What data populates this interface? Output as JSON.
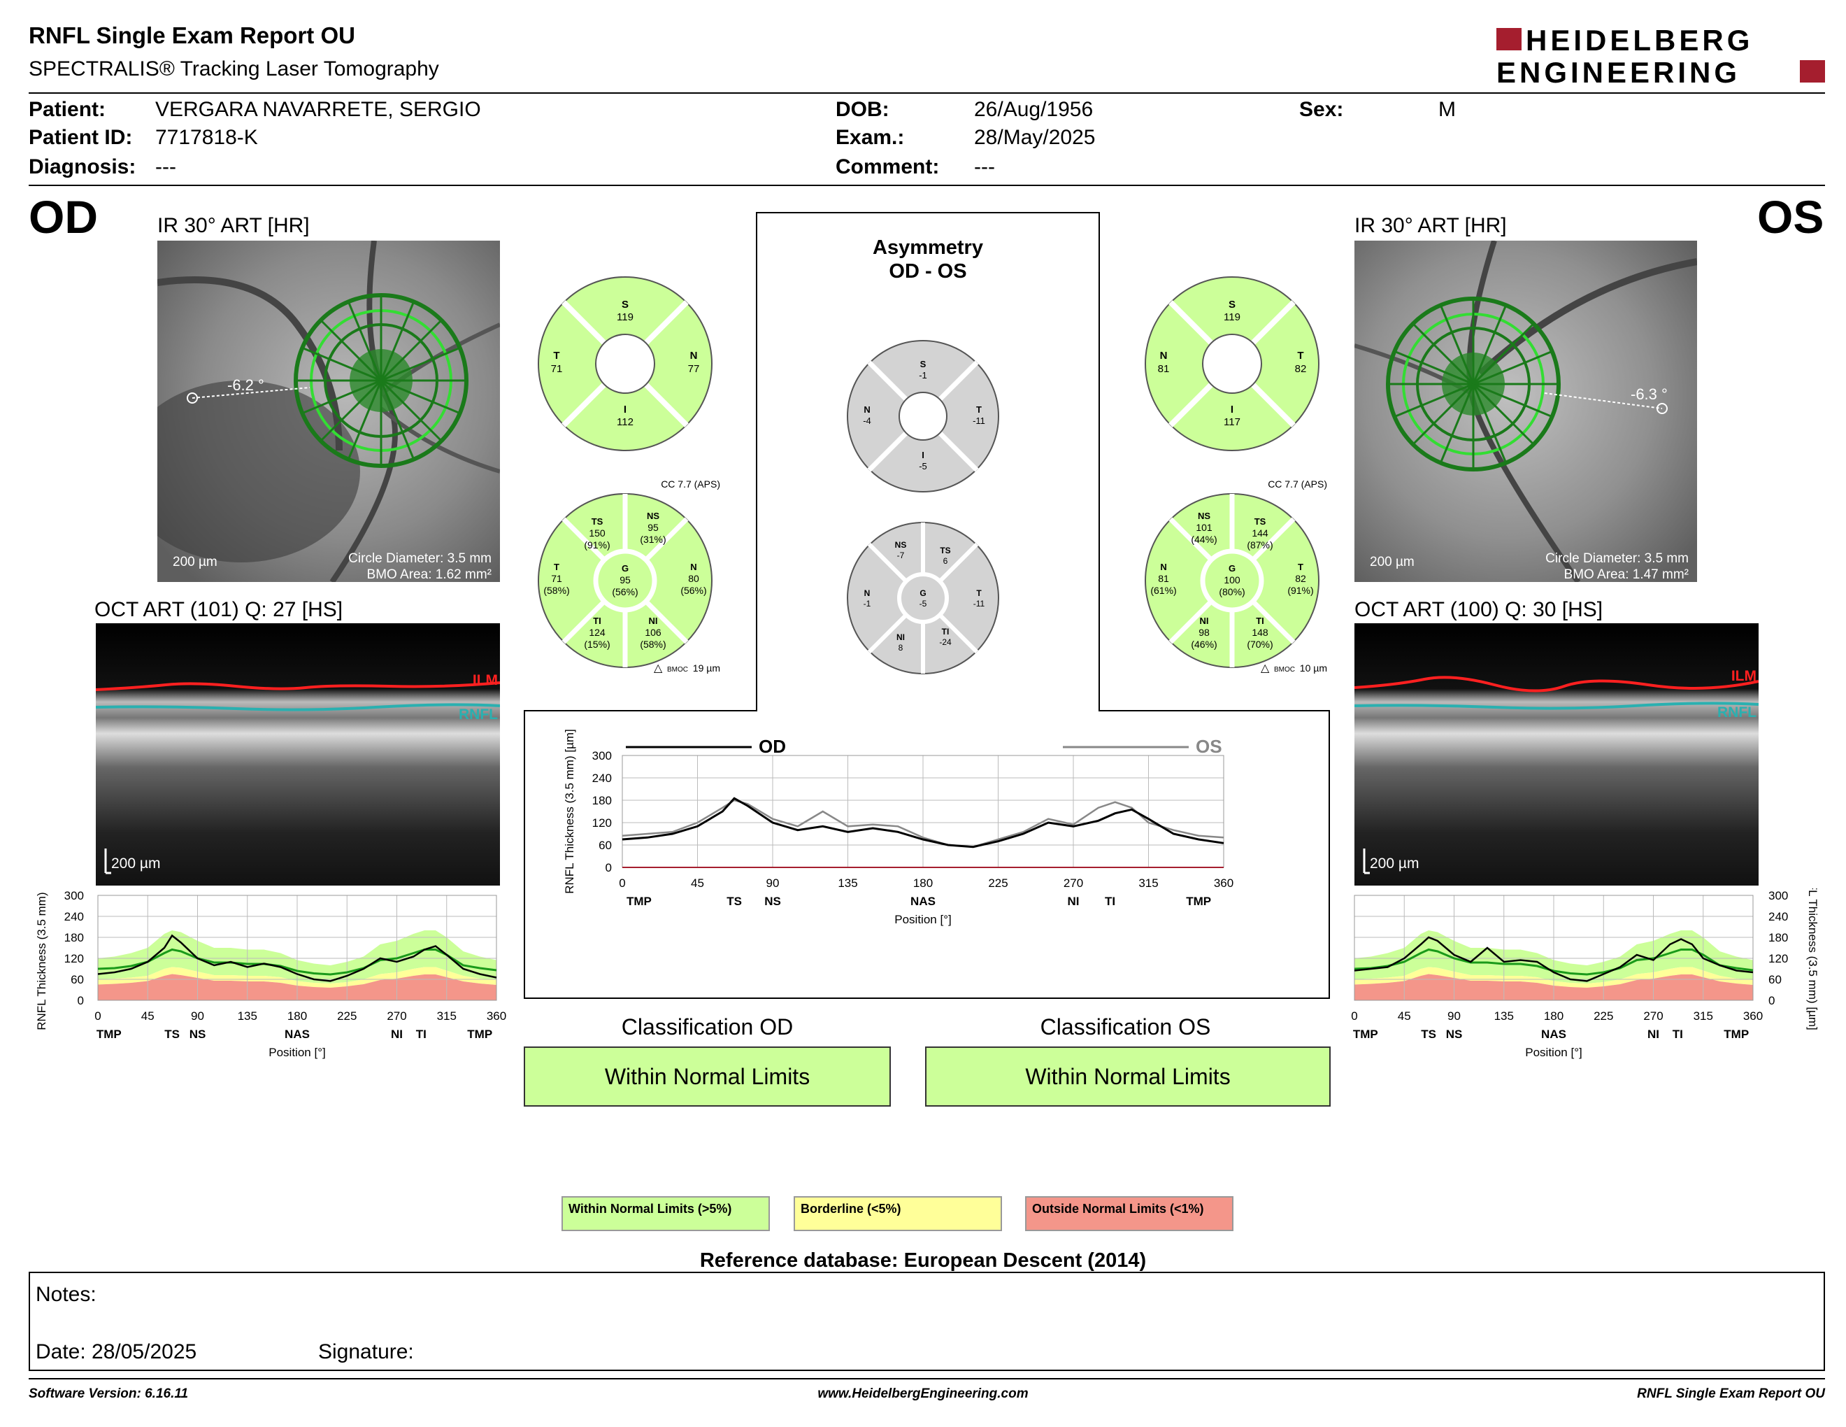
{
  "header": {
    "title": "RNFL Single Exam Report OU",
    "subtitle": "SPECTRALIS® Tracking Laser Tomography",
    "logo_line1": "HEIDELBERG",
    "logo_line2": "ENGINEERING"
  },
  "patient": {
    "patient_label": "Patient:",
    "patient_value": "VERGARA NAVARRETE, SERGIO",
    "id_label": "Patient ID:",
    "id_value": "7717818-K",
    "diagnosis_label": "Diagnosis:",
    "diagnosis_value": "---",
    "dob_label": "DOB:",
    "dob_value": "26/Aug/1956",
    "exam_label": "Exam.:",
    "exam_value": "28/May/2025",
    "comment_label": "Comment:",
    "comment_value": "---",
    "sex_label": "Sex:",
    "sex_value": "M"
  },
  "od": {
    "eye": "OD",
    "ir_title": "IR 30° ART [HR]",
    "angle": "-6.2 °",
    "scale": "200 µm",
    "circle": "Circle Diameter: 3.5 mm",
    "bmo": "BMO Area: 1.62 mm²",
    "oct_title": "OCT ART (101) Q: 27 [HS]",
    "oct_scale": "200 µm",
    "ilm": "ILM",
    "rnfl": "RNFL",
    "sectors4": {
      "S": "119",
      "T": "71",
      "N": "77",
      "I": "112"
    },
    "cc": "CC 7.7 (APS)",
    "bmoc_label": "BMOC",
    "bmoc_val": "19 µm",
    "sectors6": {
      "TS": "150",
      "TS_p": "(91%)",
      "NS": "95",
      "NS_p": "(31%)",
      "T": "71",
      "T_p": "(58%)",
      "G": "95",
      "G_p": "(56%)",
      "N": "80",
      "N_p": "(56%)",
      "TI": "124",
      "TI_p": "(15%)",
      "NI": "106",
      "NI_p": "(58%)"
    },
    "classification_title": "Classification OD",
    "classification": "Within Normal Limits"
  },
  "os": {
    "eye": "OS",
    "ir_title": "IR 30° ART [HR]",
    "angle": "-6.3 °",
    "scale": "200 µm",
    "circle": "Circle Diameter: 3.5 mm",
    "bmo": "BMO Area: 1.47 mm²",
    "oct_title": "OCT ART (100) Q: 30 [HS]",
    "oct_scale": "200 µm",
    "ilm": "ILM",
    "rnfl": "RNFL",
    "sectors4": {
      "S": "119",
      "N": "81",
      "T": "82",
      "I": "117"
    },
    "cc": "CC 7.7 (APS)",
    "bmoc_label": "BMOC",
    "bmoc_val": "10 µm",
    "sectors6": {
      "NS": "101",
      "NS_p": "(44%)",
      "TS": "144",
      "TS_p": "(87%)",
      "N": "81",
      "N_p": "(61%)",
      "G": "100",
      "G_p": "(80%)",
      "T": "82",
      "T_p": "(91%)",
      "NI": "98",
      "NI_p": "(46%)",
      "TI": "148",
      "TI_p": "(70%)"
    },
    "classification_title": "Classification OS",
    "classification": "Within Normal Limits"
  },
  "asym": {
    "title1": "Asymmetry",
    "title2": "OD - OS",
    "s4": {
      "S": "-1",
      "N": "-4",
      "T": "-11",
      "I": "-5"
    },
    "s6": {
      "NS": "-7",
      "TS": "6",
      "N": "-1",
      "G": "-5",
      "T": "-11",
      "NI": "8",
      "TI": "-24"
    }
  },
  "charts": {
    "ylabel": "RNFL Thickness (3.5 mm) [µm]",
    "xlabel": "Position [°]",
    "od_legend": "OD",
    "os_legend": "OS",
    "yticks": [
      "0",
      "60",
      "120",
      "180",
      "240",
      "300"
    ],
    "xticks": [
      "0",
      "45",
      "90",
      "135",
      "180",
      "225",
      "270",
      "315",
      "360"
    ],
    "sectors": [
      "TMP",
      "TS",
      "NS",
      "NAS",
      "NI",
      "TI",
      "TMP"
    ]
  },
  "chart_data": {
    "type": "line",
    "x": [
      0,
      15,
      30,
      45,
      60,
      67,
      75,
      90,
      105,
      120,
      135,
      150,
      165,
      180,
      195,
      210,
      225,
      240,
      255,
      270,
      285,
      295,
      305,
      315,
      330,
      345,
      360
    ],
    "series": [
      {
        "name": "OD",
        "values": [
          75,
          80,
          90,
          110,
          150,
          185,
          165,
          120,
          100,
          110,
          95,
          105,
          95,
          75,
          60,
          55,
          70,
          90,
          120,
          110,
          125,
          145,
          155,
          130,
          90,
          75,
          65
        ]
      },
      {
        "name": "OS",
        "values": [
          85,
          90,
          95,
          120,
          160,
          180,
          170,
          130,
          110,
          150,
          110,
          115,
          110,
          80,
          60,
          55,
          75,
          95,
          130,
          115,
          160,
          175,
          160,
          120,
          100,
          85,
          80
        ]
      }
    ],
    "xlim": [
      0,
      360
    ],
    "ylim": [
      0,
      300
    ],
    "normal_band": {
      "upper": [
        120,
        125,
        135,
        150,
        190,
        200,
        195,
        170,
        150,
        150,
        145,
        145,
        135,
        115,
        105,
        100,
        110,
        125,
        160,
        170,
        190,
        200,
        200,
        180,
        140,
        125,
        115
      ],
      "border": [
        60,
        62,
        65,
        70,
        90,
        95,
        93,
        82,
        72,
        72,
        70,
        70,
        66,
        55,
        50,
        48,
        52,
        60,
        75,
        80,
        90,
        95,
        95,
        85,
        70,
        62,
        58
      ],
      "outside": [
        45,
        47,
        50,
        55,
        70,
        75,
        72,
        64,
        56,
        56,
        54,
        54,
        50,
        42,
        38,
        36,
        40,
        46,
        58,
        62,
        70,
        74,
        74,
        66,
        54,
        48,
        44
      ],
      "mean": [
        90,
        92,
        98,
        110,
        135,
        145,
        140,
        120,
        108,
        108,
        104,
        104,
        98,
        84,
        77,
        74,
        80,
        92,
        115,
        120,
        135,
        145,
        145,
        130,
        100,
        92,
        86
      ]
    }
  },
  "legend": {
    "wnl": "Within Normal Limits (>5%)",
    "bl": "Borderline (<5%)",
    "onl": "Outside Normal Limits (<1%)",
    "wnl_color": "#ccff99",
    "bl_color": "#ffff99",
    "onl_color": "#f4968a"
  },
  "refdb": "Reference database: European Descent (2014)",
  "notes": {
    "notes_label": "Notes:",
    "date_label": "Date: 28/05/2025",
    "signature_label": "Signature:"
  },
  "footer": {
    "version": "Software Version: 6.16.11",
    "url": "www.HeidelbergEngineering.com",
    "report": "RNFL Single Exam Report OU"
  }
}
